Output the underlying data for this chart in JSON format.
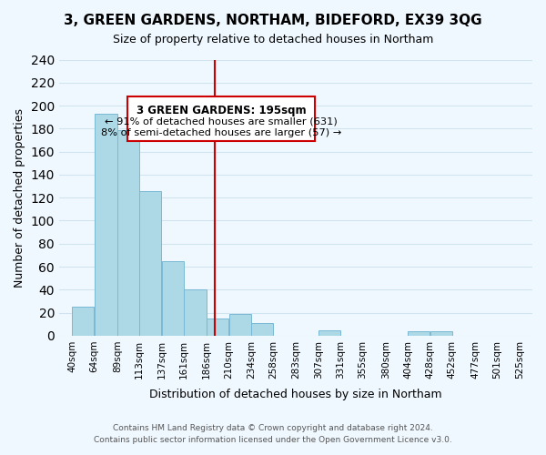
{
  "title": "3, GREEN GARDENS, NORTHAM, BIDEFORD, EX39 3QG",
  "subtitle": "Size of property relative to detached houses in Northam",
  "xlabel": "Distribution of detached houses by size in Northam",
  "ylabel": "Number of detached properties",
  "bar_edges": [
    40,
    64,
    89,
    113,
    137,
    161,
    186,
    210,
    234,
    258,
    283,
    307,
    331,
    355,
    380,
    404,
    428,
    452,
    477,
    501,
    525
  ],
  "bar_heights": [
    25,
    193,
    179,
    126,
    65,
    40,
    15,
    19,
    11,
    0,
    0,
    5,
    0,
    0,
    0,
    4,
    4,
    0,
    0,
    0
  ],
  "bar_color": "#add8e6",
  "bar_edge_color": "#7ab8d4",
  "vline_x": 195,
  "vline_color": "#cc0000",
  "annotation_title": "3 GREEN GARDENS: 195sqm",
  "annotation_line1": "← 91% of detached houses are smaller (631)",
  "annotation_line2": "8% of semi-detached houses are larger (57) →",
  "annotation_box_color": "#ffffff",
  "annotation_box_edge": "#cc0000",
  "tick_labels": [
    "40sqm",
    "64sqm",
    "89sqm",
    "113sqm",
    "137sqm",
    "161sqm",
    "186sqm",
    "210sqm",
    "234sqm",
    "258sqm",
    "283sqm",
    "307sqm",
    "331sqm",
    "355sqm",
    "380sqm",
    "404sqm",
    "428sqm",
    "452sqm",
    "477sqm",
    "501sqm",
    "525sqm"
  ],
  "ylim": [
    0,
    240
  ],
  "yticks": [
    0,
    20,
    40,
    60,
    80,
    100,
    120,
    140,
    160,
    180,
    200,
    220,
    240
  ],
  "footer_line1": "Contains HM Land Registry data © Crown copyright and database right 2024.",
  "footer_line2": "Contains public sector information licensed under the Open Government Licence v3.0.",
  "grid_color": "#d0e4f0",
  "background_color": "#f0f8ff"
}
